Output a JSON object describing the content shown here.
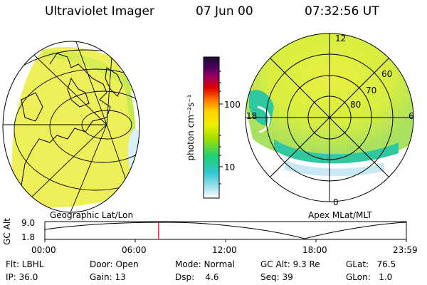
{
  "header": {
    "title": "Ultraviolet Imager",
    "date": "07 Jun 00",
    "time": "07:32:56 UT"
  },
  "colorbar": {
    "unit_label": "photon cm⁻²s⁻¹",
    "ticks": [
      "100",
      "10"
    ],
    "colors": [
      "#1a1030",
      "#4a0060",
      "#9a0060",
      "#e00000",
      "#ff7000",
      "#ffd000",
      "#f0f000",
      "#a0e000",
      "#20d070",
      "#30c8d0",
      "#a0e0f0",
      "#ffffff"
    ]
  },
  "panels": {
    "left_caption": "Geographic Lat/Lon",
    "right_caption": "Apex MLat/MLT",
    "mlt_labels": [
      "12",
      "18",
      "6",
      "0"
    ],
    "mlat_labels": [
      "60",
      "70",
      "80"
    ]
  },
  "altitude_plot": {
    "ylabel": "GC Alt",
    "yticks": [
      "9.0",
      "1.8"
    ],
    "xticks": [
      "00:00",
      "06:00",
      "12:00",
      "18:00",
      "23:59"
    ],
    "marker_time_hours": 7.55,
    "marker_color": "#e00000"
  },
  "status": {
    "flt": "Flt: LBHL",
    "ip": "IP: 36.0",
    "door": "Door: Open",
    "gain": "Gain: 13",
    "mode": "Mode: Normal",
    "dsp": "Dsp:    4.6",
    "gcalt": "GC Alt: 9.3 Re",
    "seq": "Seq: 39",
    "glat": "GLat:   76.5",
    "glon": "GLon:   1.0"
  }
}
